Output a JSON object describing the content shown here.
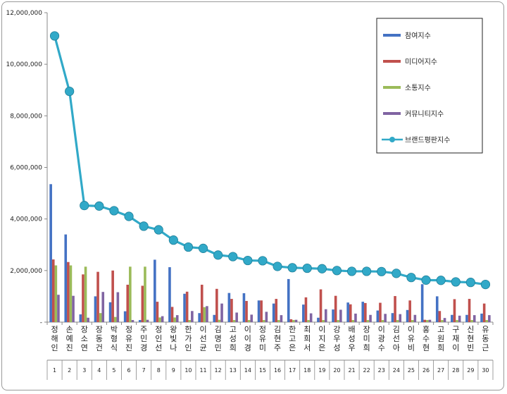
{
  "chart_data": {
    "type": "bar",
    "title": "",
    "xlabel": "",
    "ylabel": "",
    "ylim": [
      0,
      12000000
    ],
    "yticks": [
      0,
      2000000,
      4000000,
      6000000,
      8000000,
      10000000,
      12000000
    ],
    "ytick_labels": [
      "-",
      "2,000,000",
      "4,000,000",
      "6,000,000",
      "8,000,000",
      "10,000,000",
      "12,000,000"
    ],
    "grid": false,
    "legend_position": "top-right",
    "categories": [
      "정해인",
      "손예진",
      "장소연",
      "장동건",
      "박형식",
      "정유진",
      "주민경",
      "정인선",
      "왕빛나",
      "한가인",
      "이선균",
      "김명민",
      "고성희",
      "이이경",
      "정유미",
      "김현주",
      "한고은",
      "최희서",
      "이지은",
      "강우성",
      "배성우",
      "장미희",
      "이광수",
      "김선아",
      "이유비",
      "홍수현",
      "고원희",
      "구재이",
      "신현빈",
      "유동근"
    ],
    "indices": [
      "1",
      "2",
      "3",
      "4",
      "5",
      "6",
      "7",
      "8",
      "9",
      "10",
      "11",
      "12",
      "13",
      "14",
      "15",
      "16",
      "17",
      "18",
      "19",
      "20",
      "21",
      "22",
      "23",
      "24",
      "25",
      "26",
      "27",
      "28",
      "29",
      "30"
    ],
    "series": [
      {
        "name": "참여지수",
        "kind": "bar",
        "color": "#4472c4",
        "values": [
          5350000,
          3400000,
          300000,
          1000000,
          770000,
          420000,
          80000,
          2420000,
          2130000,
          1100000,
          350000,
          280000,
          1130000,
          1120000,
          840000,
          720000,
          1670000,
          680000,
          170000,
          490000,
          760000,
          790000,
          450000,
          350000,
          470000,
          1470000,
          1000000,
          280000,
          280000,
          330000
        ]
      },
      {
        "name": "미디어지수",
        "kind": "bar",
        "color": "#c0504d",
        "values": [
          2430000,
          2330000,
          1850000,
          1950000,
          2000000,
          1450000,
          1410000,
          790000,
          590000,
          1180000,
          1450000,
          1290000,
          900000,
          820000,
          840000,
          900000,
          110000,
          960000,
          1270000,
          1020000,
          690000,
          740000,
          750000,
          1010000,
          840000,
          90000,
          430000,
          890000,
          900000,
          720000
        ]
      },
      {
        "name": "소통지수",
        "kind": "bar",
        "color": "#9bbb59",
        "values": [
          2200000,
          2200000,
          2150000,
          350000,
          200000,
          2150000,
          2150000,
          180000,
          180000,
          80000,
          580000,
          90000,
          80000,
          80000,
          80000,
          80000,
          80000,
          80000,
          80000,
          80000,
          80000,
          80000,
          80000,
          80000,
          80000,
          80000,
          80000,
          80000,
          80000,
          80000
        ]
      },
      {
        "name": "커뮤니티지수",
        "kind": "bar",
        "color": "#8064a2",
        "values": [
          1060000,
          1020000,
          170000,
          1170000,
          1160000,
          80000,
          90000,
          230000,
          270000,
          430000,
          620000,
          720000,
          370000,
          290000,
          400000,
          270000,
          90000,
          340000,
          500000,
          480000,
          330000,
          280000,
          320000,
          310000,
          280000,
          90000,
          160000,
          250000,
          270000,
          270000
        ]
      },
      {
        "name": "브랜드평판지수",
        "kind": "line",
        "color": "#31a9c8",
        "values": [
          11100000,
          8950000,
          4520000,
          4500000,
          4320000,
          4100000,
          3720000,
          3580000,
          3180000,
          2910000,
          2860000,
          2600000,
          2540000,
          2390000,
          2380000,
          2160000,
          2110000,
          2090000,
          2070000,
          2000000,
          1970000,
          1970000,
          1960000,
          1890000,
          1730000,
          1630000,
          1620000,
          1560000,
          1540000,
          1460000
        ]
      }
    ]
  }
}
